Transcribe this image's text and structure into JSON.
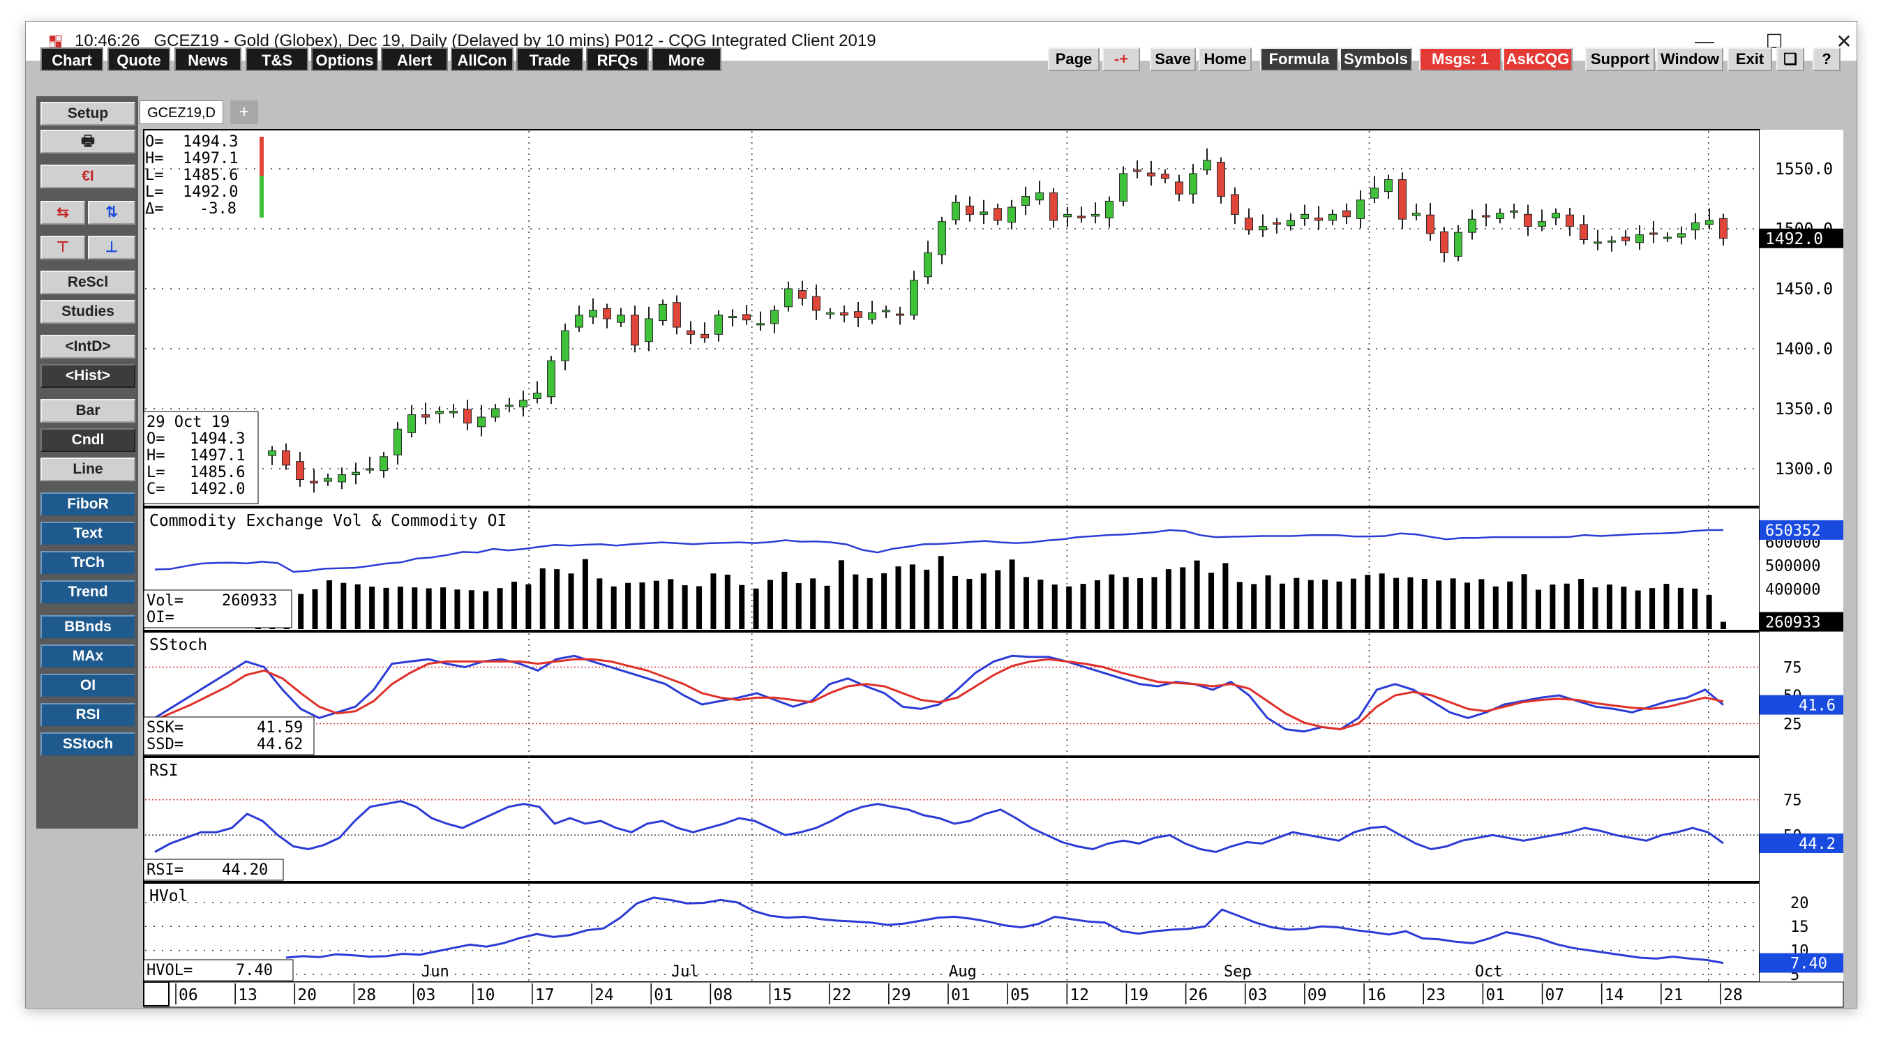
{
  "window": {
    "time": "10:46:26",
    "title": "GCEZ19 - Gold (Globex), Dec 19, Daily (Delayed by 10 mins)   P012 - CQG Integrated Client 2019"
  },
  "menu_left": [
    "Chart",
    "Quote",
    "News",
    "T&S",
    "Options",
    "Alert",
    "AllCon",
    "Trade",
    "RFQs",
    "More"
  ],
  "menu_right": [
    "Page",
    "-+",
    "Save",
    "Home",
    "Formula",
    "Symbols",
    "Msgs: 1",
    "AskCQG",
    "Support",
    "Window",
    "Exit"
  ],
  "sidebar": [
    "Setup",
    "Print",
    "CQG",
    "Arrows1",
    "Arrows2",
    "Arrows3",
    "Arrows4",
    "ReScl",
    "Studies",
    "<IntD>",
    "<Hist>",
    "Bar",
    "Cndl",
    "Line",
    "FiboR",
    "Text",
    "TrCh",
    "Trend",
    "BBnds",
    "MAx",
    "OI",
    "RSI",
    "SStoch"
  ],
  "tab": {
    "label": "GCEZ19,D",
    "add": "+"
  },
  "quote_box": {
    "O": "1494.3",
    "H": "1497.1",
    "L1": "1485.6",
    "L2": "1492.0",
    "D": "-3.8"
  },
  "cursor_box": {
    "date": "29 Oct 19",
    "O": "1494.3",
    "H": "1497.1",
    "L": "1485.6",
    "C": "1492.0"
  },
  "chart_data": {
    "type": "candlestick",
    "instrument": "GCEZ19",
    "price_axis": {
      "ticks": [
        "1550.0",
        "1500.0",
        "1450.0",
        "1400.0",
        "1350.0",
        "1300.0"
      ],
      "last": "1492.0"
    },
    "volume_panel": {
      "title": "Commodity Exchange Vol & Commodity OI",
      "ticks": [
        "600000",
        "500000",
        "400000"
      ],
      "last_oi": "650352",
      "last_vol": "260933",
      "readout": {
        "Vol": "260933",
        "OI": ""
      }
    },
    "sstoch_panel": {
      "title": "SStoch",
      "ticks": [
        "75",
        "50",
        "25"
      ],
      "last": "41.6",
      "readout": {
        "SSK": "41.59",
        "SSD": "44.62"
      }
    },
    "rsi_panel": {
      "title": "RSI",
      "ticks": [
        "75",
        "50"
      ],
      "last": "44.2",
      "readout": {
        "RSI": "44.20"
      }
    },
    "hvol_panel": {
      "title": "HVol",
      "ticks": [
        "20",
        "15",
        "10",
        "5"
      ],
      "last": "7.40",
      "readout": {
        "HVOL": "7.40"
      }
    },
    "months": [
      "Jun",
      "Jul",
      "Aug",
      "Sep",
      "Oct"
    ],
    "day_labels": [
      "06",
      "13",
      "20",
      "28",
      "03",
      "10",
      "17",
      "24",
      "01",
      "08",
      "15",
      "22",
      "29",
      "01",
      "05",
      "12",
      "19",
      "26",
      "03",
      "09",
      "16",
      "23",
      "01",
      "07",
      "14",
      "21",
      "28"
    ],
    "close": [
      1315,
      1303,
      1291,
      1288,
      1292,
      1295,
      1297,
      1300,
      1310,
      1333,
      1345,
      1343,
      1348,
      1348,
      1338,
      1343,
      1350,
      1353,
      1357,
      1363,
      1390,
      1415,
      1428,
      1432,
      1425,
      1428,
      1403,
      1425,
      1437,
      1418,
      1412,
      1409,
      1428,
      1427,
      1424,
      1421,
      1432,
      1450,
      1442,
      1432,
      1430,
      1428,
      1426,
      1430,
      1432,
      1428,
      1457,
      1480,
      1506,
      1522,
      1512,
      1514,
      1507,
      1518,
      1527,
      1530,
      1507,
      1512,
      1509,
      1512,
      1523,
      1546,
      1548,
      1544,
      1542,
      1529,
      1546,
      1557,
      1527,
      1512,
      1499,
      1502,
      1504,
      1507,
      1512,
      1507,
      1512,
      1510,
      1524,
      1534,
      1541,
      1508,
      1513,
      1496,
      1480,
      1497,
      1508,
      1510,
      1513,
      1515,
      1502,
      1506,
      1513,
      1502,
      1491,
      1489,
      1490,
      1490,
      1495,
      1496,
      1493,
      1496,
      1505,
      1507,
      1492
    ],
    "volume": [
      380000,
      390000,
      372000,
      379000,
      399000,
      437000,
      426000,
      420000,
      410000,
      405000,
      410000,
      407000,
      403000,
      407000,
      398000,
      395000,
      391000,
      404000,
      431000,
      420000,
      488000,
      484000,
      466000,
      527000,
      445000,
      411000,
      426000,
      428000,
      435000,
      442000,
      416000,
      412000,
      466000,
      461000,
      417000,
      402000,
      439000,
      473000,
      425000,
      445000,
      414000,
      522000,
      462000,
      446000,
      467000,
      496000,
      504000,
      482000,
      540000,
      455000,
      443000,
      466000,
      480000,
      525000,
      451000,
      440000,
      419000,
      411000,
      422000,
      437000,
      462000,
      451000,
      446000,
      451000,
      484000,
      492000,
      521000,
      469000,
      510000,
      430000,
      421000,
      458000,
      423000,
      447000,
      438000,
      440000,
      432000,
      444000,
      460000,
      466000,
      447000,
      450000,
      443000,
      436000,
      445000,
      427000,
      442000,
      411000,
      432000,
      463000,
      397000,
      419000,
      423000,
      443000,
      407000,
      419000,
      410000,
      394000,
      404000,
      422000,
      405000,
      402000,
      375000,
      260933
    ],
    "open_interest": [
      483000,
      485000,
      497000,
      508000,
      511000,
      512000,
      509000,
      516000,
      510000,
      473000,
      477000,
      486000,
      488000,
      490000,
      498000,
      508000,
      513000,
      529000,
      534000,
      544000,
      557000,
      555000,
      570000,
      564000,
      570000,
      579000,
      587000,
      584000,
      588000,
      590000,
      584000,
      590000,
      594000,
      598000,
      594000,
      590000,
      594000,
      596000,
      598000,
      595000,
      599000,
      607000,
      601000,
      602000,
      598000,
      589000,
      566000,
      555000,
      571000,
      580000,
      590000,
      591000,
      595000,
      600000,
      604000,
      598000,
      595000,
      598000,
      606000,
      611000,
      620000,
      624000,
      629000,
      631000,
      636000,
      641000,
      650000,
      646000,
      628000,
      620000,
      622000,
      623000,
      625000,
      625000,
      625000,
      628000,
      629000,
      628000,
      623000,
      623000,
      625000,
      636000,
      632000,
      621000,
      611000,
      617000,
      617000,
      620000,
      620000,
      620000,
      620000,
      620000,
      621000,
      629000,
      625000,
      628000,
      632000,
      635000,
      636000,
      639000,
      646000,
      650000,
      650352
    ],
    "sstoch_k": [
      30,
      40,
      50,
      60,
      70,
      80,
      75,
      55,
      38,
      30,
      35,
      40,
      55,
      78,
      80,
      82,
      78,
      75,
      80,
      82,
      78,
      72,
      82,
      85,
      80,
      75,
      70,
      65,
      60,
      50,
      42,
      45,
      48,
      52,
      46,
      40,
      45,
      60,
      65,
      58,
      52,
      40,
      38,
      42,
      55,
      70,
      80,
      85,
      84,
      84,
      80,
      75,
      70,
      65,
      60,
      58,
      62,
      60,
      55,
      62,
      50,
      30,
      20,
      18,
      22,
      20,
      30,
      55,
      60,
      55,
      45,
      35,
      30,
      35,
      42,
      45,
      48,
      50,
      45,
      40,
      38,
      35,
      40,
      45,
      48,
      55,
      41.59
    ],
    "sstoch_d": [
      28,
      35,
      42,
      50,
      58,
      68,
      72,
      65,
      52,
      40,
      34,
      36,
      45,
      60,
      70,
      78,
      80,
      80,
      80,
      80,
      80,
      78,
      80,
      82,
      82,
      80,
      76,
      72,
      66,
      60,
      52,
      48,
      46,
      48,
      48,
      46,
      44,
      52,
      58,
      60,
      58,
      52,
      46,
      44,
      48,
      58,
      68,
      76,
      80,
      82,
      80,
      78,
      75,
      70,
      66,
      62,
      61,
      60,
      58,
      60,
      56,
      45,
      34,
      26,
      22,
      20,
      25,
      40,
      50,
      53,
      50,
      44,
      38,
      36,
      40,
      44,
      46,
      47,
      46,
      43,
      41,
      39,
      38,
      40,
      44,
      48,
      44.62
    ],
    "rsi": [
      38,
      44,
      48,
      52,
      52,
      55,
      65,
      60,
      50,
      42,
      40,
      43,
      48,
      60,
      70,
      72,
      74,
      70,
      62,
      58,
      55,
      60,
      65,
      70,
      72,
      70,
      58,
      62,
      58,
      60,
      55,
      52,
      58,
      60,
      55,
      52,
      55,
      58,
      62,
      60,
      55,
      50,
      52,
      55,
      60,
      66,
      70,
      72,
      70,
      68,
      64,
      62,
      58,
      60,
      65,
      68,
      62,
      55,
      50,
      45,
      42,
      40,
      44,
      46,
      44,
      48,
      50,
      44,
      40,
      38,
      42,
      45,
      44,
      48,
      52,
      50,
      48,
      46,
      52,
      55,
      56,
      50,
      44,
      40,
      42,
      46,
      48,
      50,
      48,
      46,
      48,
      50,
      52,
      55,
      53,
      50,
      48,
      46,
      50,
      52,
      55,
      52,
      44.2
    ],
    "hvol": [
      8.5,
      8.8,
      8.6,
      9.2,
      9.0,
      8.7,
      8.8,
      9.3,
      9.1,
      9.8,
      10.5,
      11.2,
      10.8,
      11.5,
      12.6,
      13.4,
      12.8,
      13.2,
      14.2,
      14.6,
      16.8,
      19.8,
      21.0,
      20.5,
      19.8,
      19.9,
      20.5,
      20.0,
      18.2,
      17.2,
      16.8,
      17.0,
      16.5,
      16.2,
      16.0,
      15.8,
      15.3,
      15.6,
      16.2,
      16.8,
      17.0,
      16.6,
      16.0,
      15.2,
      14.8,
      15.5,
      17.0,
      16.5,
      16.0,
      15.8,
      14.0,
      13.5,
      14.0,
      14.3,
      14.5,
      15.0,
      18.5,
      17.2,
      15.8,
      14.8,
      14.3,
      14.5,
      15.0,
      14.8,
      14.2,
      13.8,
      13.3,
      14.0,
      12.5,
      12.3,
      11.8,
      11.5,
      12.5,
      13.8,
      13.2,
      12.5,
      11.3,
      10.5,
      10.0,
      9.5,
      9.0,
      8.5,
      8.3,
      8.7,
      8.3,
      8.0,
      7.4
    ]
  },
  "colors": {
    "price_line": "#222222",
    "up": "#3fc23a",
    "down": "#e0473a",
    "blue_line": "#2b3bd6",
    "red_line": "#e0302a",
    "dotted_ref": "#d33333",
    "label_bg": "#1a4be0",
    "current_bg": "#000000"
  }
}
